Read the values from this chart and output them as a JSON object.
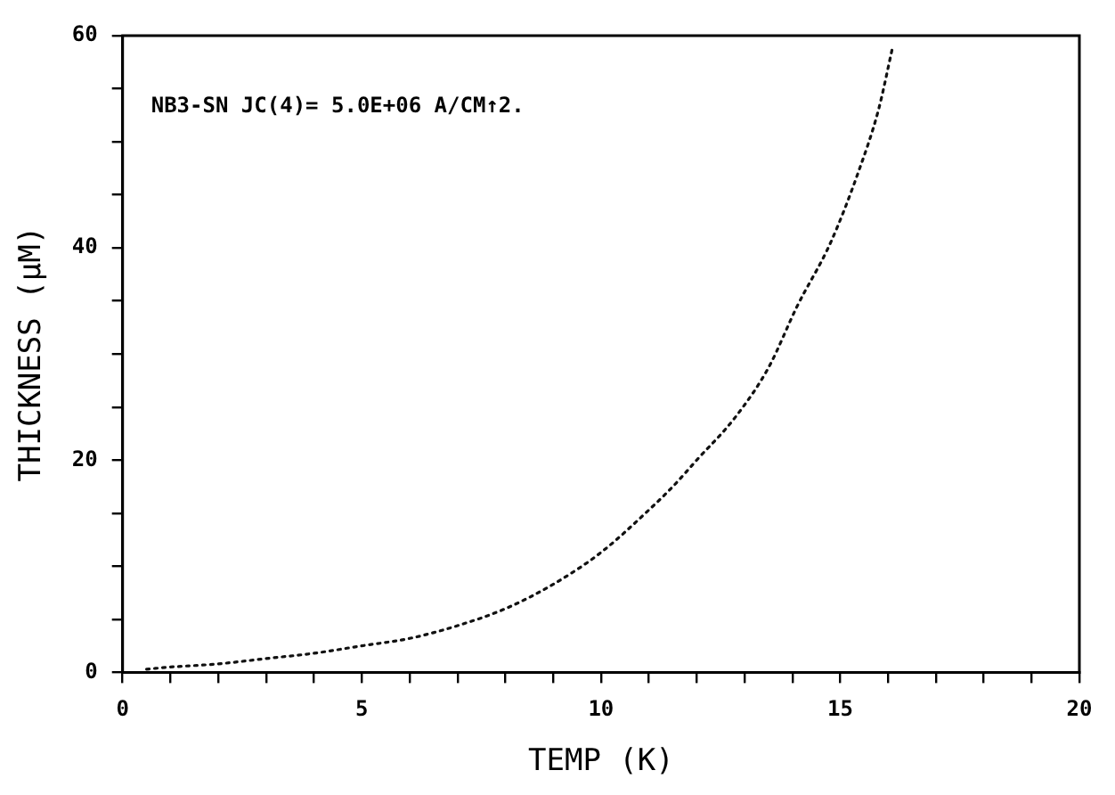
{
  "chart_data": {
    "type": "line",
    "xlabel": "TEMP (K)",
    "ylabel": "THICKNESS (μM)",
    "annotations": [
      "NB3-SN JC(4)= 5.0E+06 A/CM↑2."
    ],
    "series": [
      {
        "color": "#111111",
        "x": [
          0.5,
          1,
          2,
          3,
          4,
          5,
          6,
          7,
          8,
          9,
          10,
          11,
          11.5,
          12,
          12.8,
          13.5,
          14.1,
          14.8,
          15.4,
          15.8,
          16.1
        ],
        "values": [
          0.3,
          0.5,
          0.8,
          1.3,
          1.8,
          2.5,
          3.2,
          4.4,
          6,
          8.3,
          11.3,
          15.3,
          17.5,
          20,
          24,
          28.7,
          34.5,
          40.5,
          47.4,
          53,
          59
        ]
      }
    ],
    "xlim": [
      0,
      20
    ],
    "ylim": [
      0,
      60
    ],
    "xticks": [
      0,
      {
        "value": 1,
        "label": null
      },
      {
        "value": 2,
        "label": null
      },
      {
        "value": 3,
        "label": null
      },
      {
        "value": 4,
        "label": null
      },
      5,
      {
        "value": 6,
        "label": null
      },
      {
        "value": 7,
        "label": null
      },
      {
        "value": 8,
        "label": null
      },
      {
        "value": 9,
        "label": null
      },
      10,
      {
        "value": 11,
        "label": null
      },
      {
        "value": 12,
        "label": null
      },
      {
        "value": 13,
        "label": null
      },
      {
        "value": 14,
        "label": null
      },
      15,
      {
        "value": 16,
        "label": null
      },
      {
        "value": 17,
        "label": null
      },
      {
        "value": 18,
        "label": null
      },
      {
        "value": 19,
        "label": null
      },
      20
    ],
    "yticks": [
      0,
      {
        "value": 5,
        "label": null
      },
      {
        "value": 10,
        "label": null
      },
      {
        "value": 15,
        "label": null
      },
      20,
      {
        "value": 25,
        "label": null
      },
      {
        "value": 30,
        "label": null
      },
      {
        "value": 35,
        "label": null
      },
      40,
      {
        "value": 45,
        "label": null
      },
      {
        "value": 50,
        "label": null
      },
      {
        "value": 55,
        "label": null
      },
      60
    ],
    "grid": false,
    "legend": false,
    "marker": "none",
    "line_style": "dotted"
  }
}
